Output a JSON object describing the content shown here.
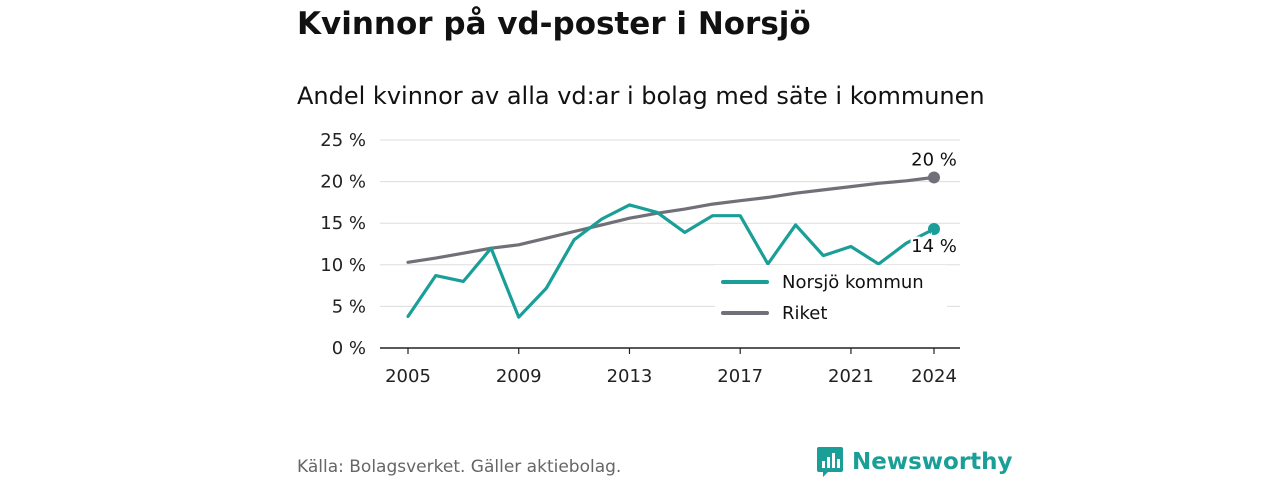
{
  "title": "Kvinnor på vd-poster i Norsjö",
  "subtitle": "Andel kvinnor av alla vd:ar i bolag med säte i kommunen",
  "source": "Källa: Bolagsverket. Gäller aktiebolag.",
  "brand": "Newsworthy",
  "colors": {
    "norsjo": "#1a9e98",
    "riket": "#717078",
    "grid": "#dddddd",
    "axis": "#222222"
  },
  "chart_data": {
    "type": "line",
    "title": "Andel kvinnor av alla vd:ar i bolag med säte i kommunen",
    "x": [
      2005,
      2006,
      2007,
      2008,
      2009,
      2010,
      2011,
      2012,
      2013,
      2014,
      2015,
      2016,
      2017,
      2018,
      2019,
      2020,
      2021,
      2022,
      2023,
      2024
    ],
    "x_ticks": [
      2005,
      2009,
      2013,
      2017,
      2021,
      2024
    ],
    "y_ticks": [
      0,
      5,
      10,
      15,
      20,
      25
    ],
    "y_tick_labels": [
      "0 %",
      "5 %",
      "10 %",
      "15 %",
      "20 %",
      "25 %"
    ],
    "ylim": [
      0,
      25
    ],
    "series": [
      {
        "name": "Norsjö kommun",
        "color": "#1a9e98",
        "values": [
          3.8,
          8.7,
          8.0,
          12.0,
          3.7,
          7.2,
          13.0,
          15.5,
          17.2,
          16.3,
          13.9,
          15.9,
          15.9,
          10.1,
          14.8,
          11.1,
          12.2,
          10.1,
          12.6,
          14.3
        ],
        "end_label": "14 %"
      },
      {
        "name": "Riket",
        "color": "#717078",
        "values": [
          10.3,
          10.8,
          11.4,
          12.0,
          12.4,
          13.2,
          14.0,
          14.8,
          15.6,
          16.2,
          16.7,
          17.3,
          17.7,
          18.1,
          18.6,
          19.0,
          19.4,
          19.8,
          20.1,
          20.5
        ],
        "end_label": "20 %"
      }
    ],
    "legend": [
      "Norsjö kommun",
      "Riket"
    ],
    "legend_placement": "bottom-right",
    "grid": true
  }
}
